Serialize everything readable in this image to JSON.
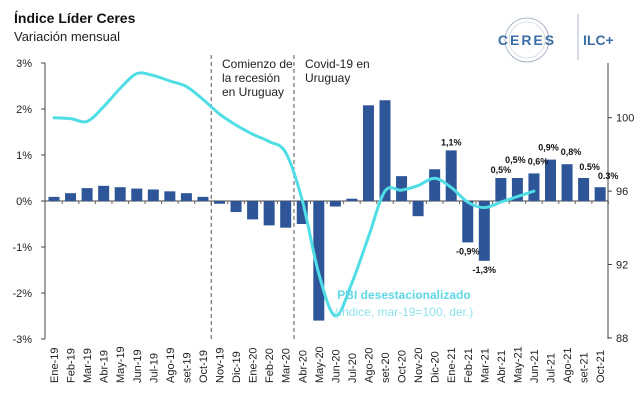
{
  "header": {
    "title": "Índice Líder Ceres",
    "subtitle": "Variación mensual"
  },
  "logo": {
    "brand": "CERES",
    "product": "ILC+"
  },
  "chart_data": {
    "type": "bar+line",
    "title": "Índice Líder Ceres",
    "subtitle": "Variación mensual",
    "categories": [
      "Ene-19",
      "Feb-19",
      "Mar-19",
      "Abr-19",
      "May-19",
      "Jun-19",
      "Jul-19",
      "Ago-19",
      "set-19",
      "Oct-19",
      "Nov-19",
      "Dic-19",
      "Ene-20",
      "Feb-20",
      "Mar-20",
      "Abr-20",
      "May-20",
      "Jun-20",
      "Jul-20",
      "Ago-20",
      "set-20",
      "Oct-20",
      "Nov-20",
      "Dic-20",
      "Ene-21",
      "Feb-21",
      "Mar-21",
      "Abr-21",
      "May-21",
      "Jun-21",
      "Jul-21",
      "Ago-21",
      "set-21",
      "Oct-21"
    ],
    "bar_series": {
      "axis": "left",
      "color": "#2e5597",
      "values": [
        0.09,
        0.17,
        0.28,
        0.33,
        0.3,
        0.27,
        0.25,
        0.21,
        0.17,
        0.09,
        -0.06,
        -0.24,
        -0.4,
        -0.53,
        -0.58,
        -0.5,
        -2.6,
        -0.12,
        0.05,
        2.08,
        2.19,
        0.54,
        -0.33,
        0.69,
        1.1,
        -0.9,
        -1.3,
        0.5,
        0.5,
        0.6,
        0.9,
        0.8,
        0.5,
        0.3
      ],
      "data_labels": {
        "Ene-21": "1,1%",
        "Feb-21": "-0,9%",
        "Mar-21": "-1,3%",
        "Abr-21": "0,5%",
        "May-21": "0,5%",
        "Jun-21": "0,6%",
        "Jul-21": "0,9%",
        "Ago-21": "0,8%",
        "set-21": "0.5%",
        "Oct-21": "0.3%"
      }
    },
    "line_series": {
      "name": "PBI desestacionalizado",
      "name_detail": "(índice, mar-19=100, der.)",
      "axis": "right",
      "color": "#4fdde6",
      "values": [
        100.0,
        99.95,
        99.8,
        100.6,
        101.6,
        102.4,
        102.3,
        102.0,
        101.7,
        101.0,
        100.2,
        99.6,
        99.1,
        98.7,
        98.1,
        95.5,
        91.5,
        89.2,
        91.0,
        93.5,
        96.0,
        96.05,
        96.3,
        96.7,
        96.2,
        95.4,
        95.1,
        95.4,
        95.7,
        96.0
      ]
    },
    "y_left": {
      "ticks": [
        "3%",
        "2%",
        "1%",
        "0%",
        "-1%",
        "-2%",
        "-3%"
      ],
      "range": [
        -3,
        3
      ]
    },
    "y_right": {
      "ticks": [
        "100",
        "96",
        "92",
        "88"
      ],
      "range": [
        88,
        104
      ]
    },
    "annotations": [
      {
        "lines": [
          "Comienzo de",
          "la recesión",
          "en Uruguay"
        ],
        "at": "Nov-19"
      },
      {
        "lines": [
          "Covid-19 en",
          "Uruguay"
        ],
        "at": "Abr-20"
      }
    ],
    "grid": false
  }
}
